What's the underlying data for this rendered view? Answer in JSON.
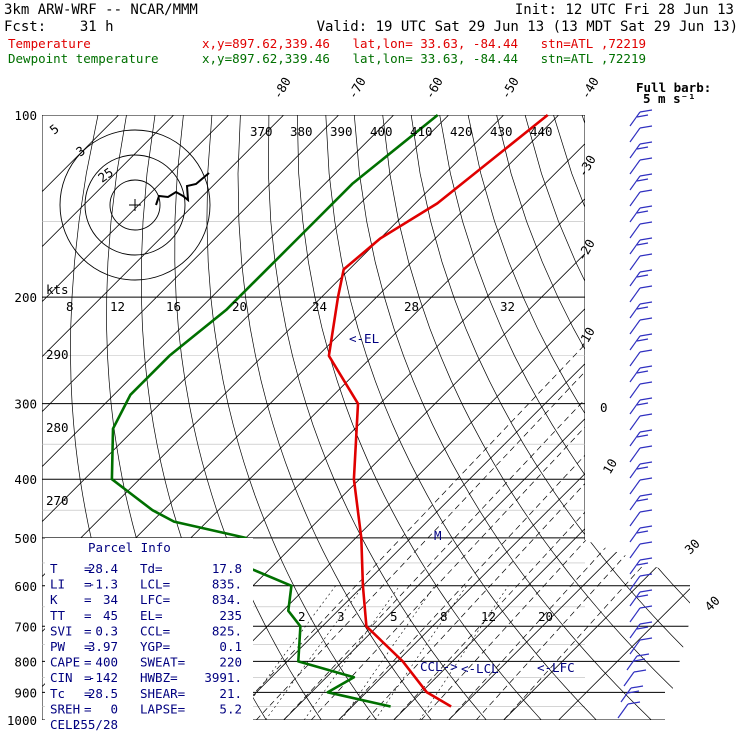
{
  "header": {
    "model": "3km ARW-WRF -- NCAR/MMM",
    "init": "Init: 12 UTC Fri 28 Jun 13",
    "fcst": "Fcst:    31 h",
    "valid": "Valid: 19 UTC Sat 29 Jun 13 (13 MDT Sat 29 Jun 13)",
    "temp_label": "Temperature",
    "temp_info": "x,y=897.62,339.46   lat,lon= 33.63, -84.44   stn=ATL ,72219",
    "dew_label": "Dewpoint temperature",
    "dew_info": "x,y=897.62,339.46   lat,lon= 33.63, -84.44   stn=ATL ,72219"
  },
  "barb_legend": {
    "line1": "Full barb:",
    "line2": "5 m s⁻¹"
  },
  "parcel": {
    "title": "Parcel Info",
    "rows": [
      {
        "k1": "T",
        "v1": "28.4",
        "k2": "Td",
        "v2": "17.8"
      },
      {
        "k1": "LI",
        "v1": "-1.3",
        "k2": "LCL",
        "v2": "835."
      },
      {
        "k1": "K",
        "v1": "34",
        "k2": "LFC",
        "v2": "834."
      },
      {
        "k1": "TT",
        "v1": "45",
        "k2": "EL",
        "v2": "235"
      },
      {
        "k1": "SVI",
        "v1": "0.3",
        "k2": "CCL",
        "v2": "825."
      },
      {
        "k1": "PW",
        "v1": "3.97",
        "k2": "YGP",
        "v2": "0.1"
      },
      {
        "k1": "CAPE",
        "v1": "400",
        "k2": "SWEAT",
        "v2": "220"
      },
      {
        "k1": "CIN",
        "v1": "-142",
        "k2": "HWBZ",
        "v2": "3991."
      },
      {
        "k1": "Tc",
        "v1": "28.5",
        "k2": "SHEAR",
        "v2": "21."
      },
      {
        "k1": "SREH",
        "v1": "0",
        "k2": "LAPSE",
        "v2": "5.2"
      },
      {
        "k1": "CELL",
        "v1": "255/28",
        "k2": "",
        "v2": ""
      }
    ]
  },
  "colors": {
    "temperature": "#e00000",
    "dewpoint": "#007000",
    "hodograph": "#000000",
    "barbs": "#3030c0",
    "labels": "#000080"
  },
  "chart_data": {
    "type": "line",
    "title": "",
    "pressure_ticks": [
      "100",
      "200",
      "300",
      "400",
      "500",
      "600",
      "700",
      "800",
      "900",
      "1000"
    ],
    "isotherm_labels": [
      "-80",
      "-70",
      "-60",
      "-50",
      "-40",
      "-30",
      "-20",
      "-10",
      "0",
      "10",
      "30",
      "40"
    ],
    "theta_labels": [
      "370",
      "380",
      "390",
      "400",
      "410",
      "420",
      "430",
      "440"
    ],
    "mixing_ratio_labels_top": [
      "8",
      "12",
      "16",
      "20",
      "24",
      "28",
      "32"
    ],
    "mixing_ratio_labels_bottom": [
      "2",
      "3",
      "5",
      "8",
      "12",
      "20"
    ],
    "left_theta_labels": [
      "290",
      "280",
      "270"
    ],
    "level_markers": {
      "el": "<-EL",
      "m": "M",
      "ccl": "CCL->",
      "lcl": "<-LCL",
      "lfc": "<-LFC"
    },
    "hodograph": {
      "rings": [
        "5",
        "3",
        "25"
      ],
      "unit": "kts"
    },
    "series": [
      {
        "name": "Temperature",
        "points": [
          [
            -62,
            100
          ],
          [
            -66,
            140
          ],
          [
            -70,
            160
          ],
          [
            -71,
            180
          ],
          [
            -67,
            200
          ],
          [
            -58,
            250
          ],
          [
            -44,
            300
          ],
          [
            -31,
            400
          ],
          [
            -19,
            500
          ],
          [
            -10,
            600
          ],
          [
            -2,
            700
          ],
          [
            11,
            800
          ],
          [
            21,
            900
          ],
          [
            28,
            950
          ]
        ]
      },
      {
        "name": "Dewpoint temperature",
        "points": [
          [
            -82,
            100
          ],
          [
            -85,
            130
          ],
          [
            -85,
            160
          ],
          [
            -85,
            190
          ],
          [
            -85,
            210
          ],
          [
            -87,
            250
          ],
          [
            -87,
            290
          ],
          [
            -84,
            330
          ],
          [
            -75,
            400
          ],
          [
            -62,
            450
          ],
          [
            -56,
            470
          ],
          [
            -40,
            500
          ],
          [
            -40,
            540
          ],
          [
            -23,
            600
          ],
          [
            -19,
            660
          ],
          [
            -14,
            700
          ],
          [
            -8,
            800
          ],
          [
            5,
            850
          ],
          [
            3,
            900
          ],
          [
            17,
            950
          ]
        ]
      }
    ],
    "wind_barbs": 38
  }
}
